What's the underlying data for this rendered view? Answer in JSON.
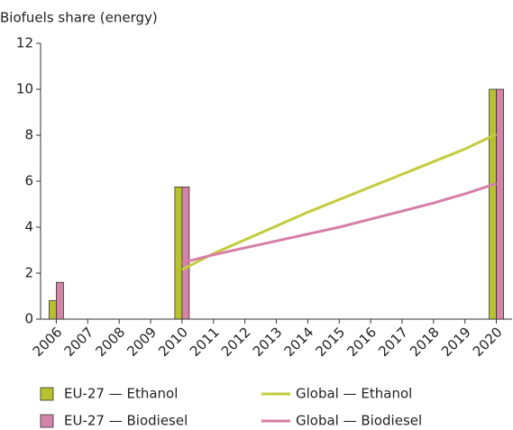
{
  "chart_data": {
    "type": "bar",
    "title": "Biofuels share (energy)",
    "categories": [
      "2006",
      "2007",
      "2008",
      "2009",
      "2010",
      "2011",
      "2012",
      "2013",
      "2014",
      "2015",
      "2016",
      "2017",
      "2018",
      "2019",
      "2020"
    ],
    "series": [
      {
        "name": "EU-27 — Ethanol",
        "type": "bar",
        "color": "#b8c22e",
        "values": [
          0.8,
          null,
          null,
          null,
          5.75,
          null,
          null,
          null,
          null,
          null,
          null,
          null,
          null,
          null,
          10
        ]
      },
      {
        "name": "EU-27 — Biodiesel",
        "type": "bar",
        "color": "#d484a6",
        "values": [
          1.6,
          null,
          null,
          null,
          5.75,
          null,
          null,
          null,
          null,
          null,
          null,
          null,
          null,
          null,
          10
        ]
      },
      {
        "name": "Global — Ethanol",
        "type": "line",
        "color": "#c3cc3c",
        "values": [
          null,
          null,
          null,
          null,
          2.15,
          2.85,
          3.45,
          4.05,
          4.65,
          5.2,
          5.75,
          6.3,
          6.85,
          7.4,
          8.05
        ]
      },
      {
        "name": "Global — Biodiesel",
        "type": "line",
        "color": "#d67fa6",
        "values": [
          null,
          null,
          null,
          null,
          2.45,
          2.8,
          3.1,
          3.4,
          3.7,
          4.0,
          4.35,
          4.7,
          5.05,
          5.45,
          5.9
        ]
      }
    ],
    "ylim": [
      0,
      12
    ],
    "yticks": [
      0,
      2,
      4,
      6,
      8,
      10,
      12
    ],
    "grid": false,
    "legend": "bottom"
  }
}
